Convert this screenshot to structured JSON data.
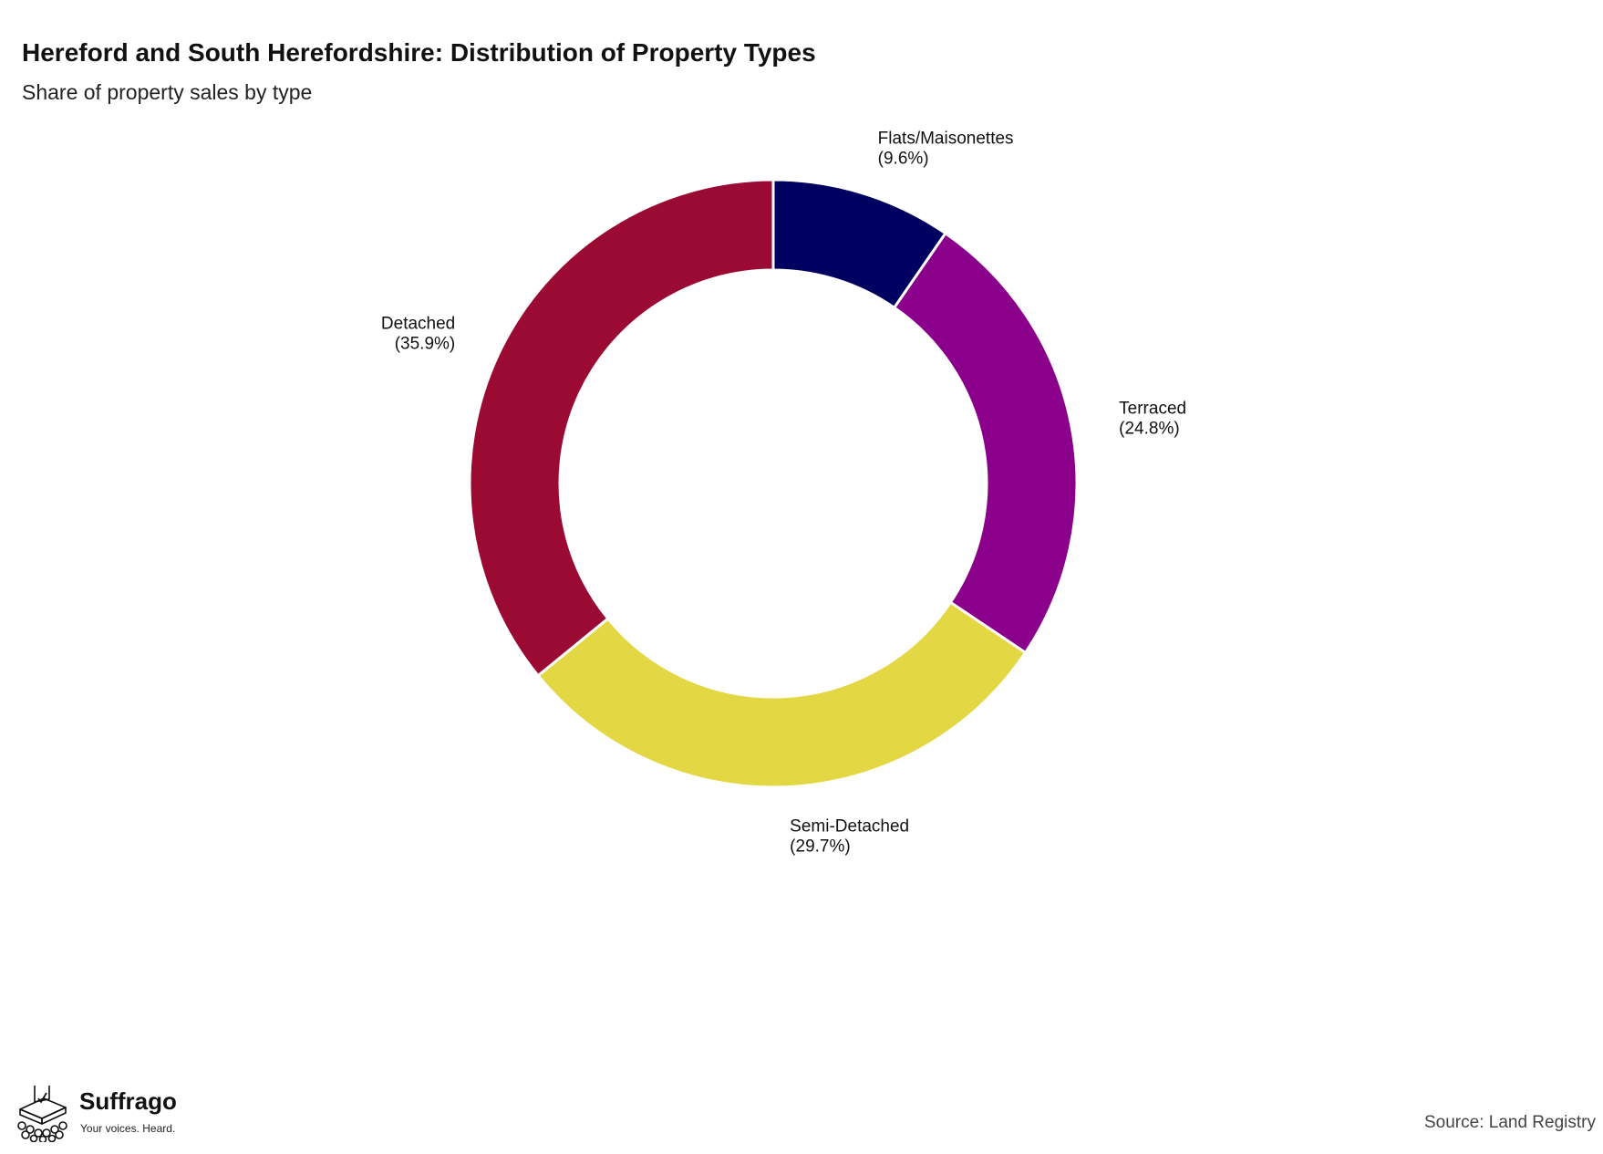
{
  "header": {
    "title": "Hereford and South Herefordshire: Distribution of Property Types",
    "subtitle": "Share of property sales by type"
  },
  "chart_data": {
    "type": "pie",
    "variant": "donut",
    "title": "Hereford and South Herefordshire: Distribution of Property Types",
    "subtitle": "Share of property sales by type",
    "unit": "%",
    "slices": [
      {
        "label": "Flats/Maisonettes",
        "value": 9.6,
        "display": "(9.6%)",
        "color": "#000060"
      },
      {
        "label": "Terraced",
        "value": 24.8,
        "display": "(24.8%)",
        "color": "#8b008b"
      },
      {
        "label": "Semi-Detached",
        "value": 29.7,
        "display": "(29.7%)",
        "color": "#e3d743"
      },
      {
        "label": "Detached",
        "value": 35.9,
        "display": "(35.9%)",
        "color": "#9a0a33"
      }
    ],
    "start_angle": "12 o'clock",
    "direction": "clockwise",
    "legend": "none"
  },
  "footer": {
    "brand": "Suffrago",
    "tagline": "Your voices. Heard.",
    "source": "Source: Land Registry"
  }
}
